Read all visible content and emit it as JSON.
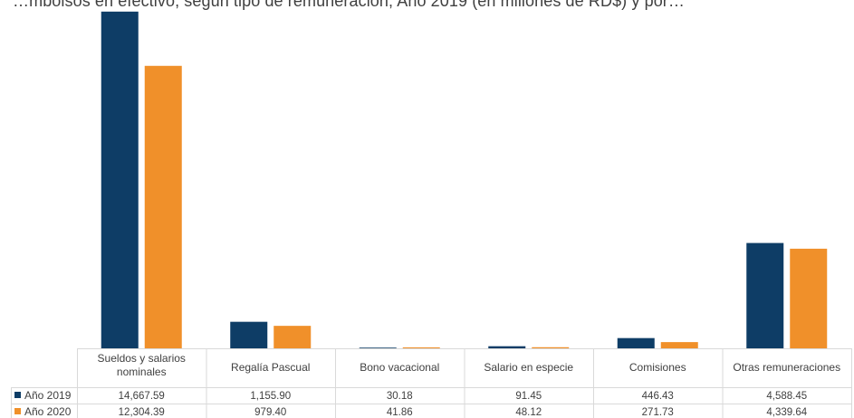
{
  "title": "…mbolsos en efectivo, según tipo de remuneración; Año 2019 (en millones de RD$) y por…",
  "chart_data": {
    "type": "bar",
    "categories": [
      [
        "Sueldos y salarios",
        "nominales"
      ],
      [
        "Regalía Pascual"
      ],
      [
        "Bono vacacional"
      ],
      [
        "Salario en especie"
      ],
      [
        "Comisiones"
      ],
      [
        "Otras remuneraciones"
      ]
    ],
    "series": [
      {
        "name": "Año 2019",
        "color": "#0e3d66",
        "values": [
          14667.59,
          1155.9,
          30.18,
          91.45,
          446.43,
          4588.45
        ],
        "labels": [
          "14,667.59",
          "1,155.90",
          "30.18",
          "91.45",
          "446.43",
          "4,588.45"
        ]
      },
      {
        "name": "Año 2020",
        "color": "#f0902a",
        "values": [
          12304.39,
          979.4,
          41.86,
          48.12,
          271.73,
          4339.64
        ],
        "labels": [
          "12,304.39",
          "979.40",
          "41.86",
          "48.12",
          "271.73",
          "4,339.64"
        ]
      }
    ],
    "ylim": [
      0,
      14700
    ],
    "grid": false,
    "legend": "data-table-left"
  }
}
